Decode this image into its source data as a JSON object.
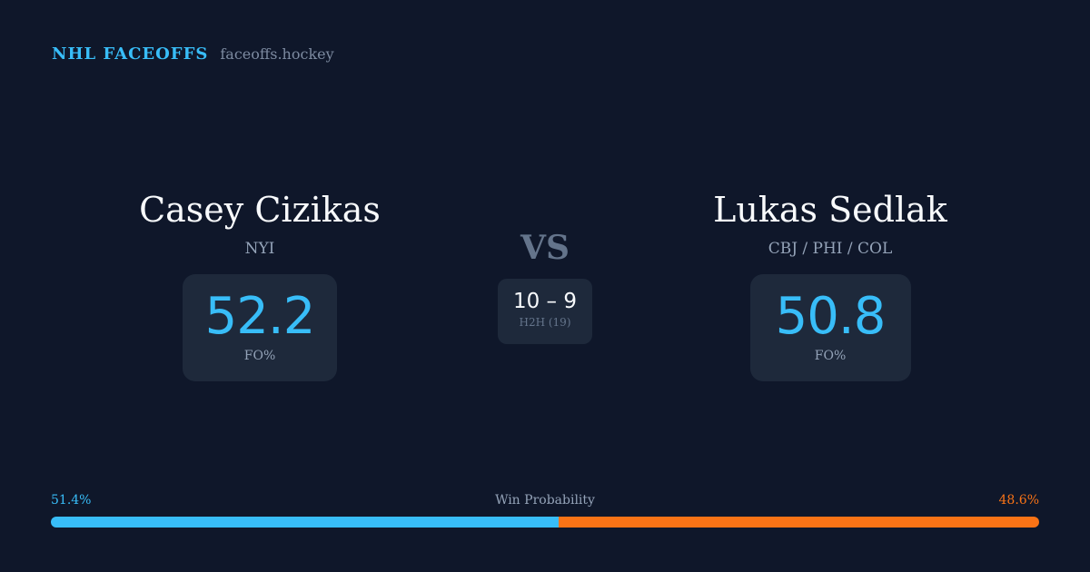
{
  "brand": {
    "name": "NHL FACEOFFS",
    "url": "faceoffs.hockey"
  },
  "player_left": {
    "name": "Casey Cizikas",
    "team": "NYI",
    "fo_pct": "52.2",
    "fo_label": "FO%"
  },
  "player_right": {
    "name": "Lukas Sedlak",
    "team": "CBJ / PHI / COL",
    "fo_pct": "50.8",
    "fo_label": "FO%"
  },
  "versus": {
    "label": "VS",
    "score": "10 – 9",
    "h2h_label": "H2H (19)"
  },
  "win_probability": {
    "label": "Win Probability",
    "left_text": "51.4%",
    "right_text": "48.6%",
    "left_value": 51.4,
    "right_value": 48.6
  },
  "colors": {
    "accent_left": "#38bdf8",
    "accent_right": "#f97316",
    "background": "#0f172a",
    "card": "#1e293b"
  }
}
